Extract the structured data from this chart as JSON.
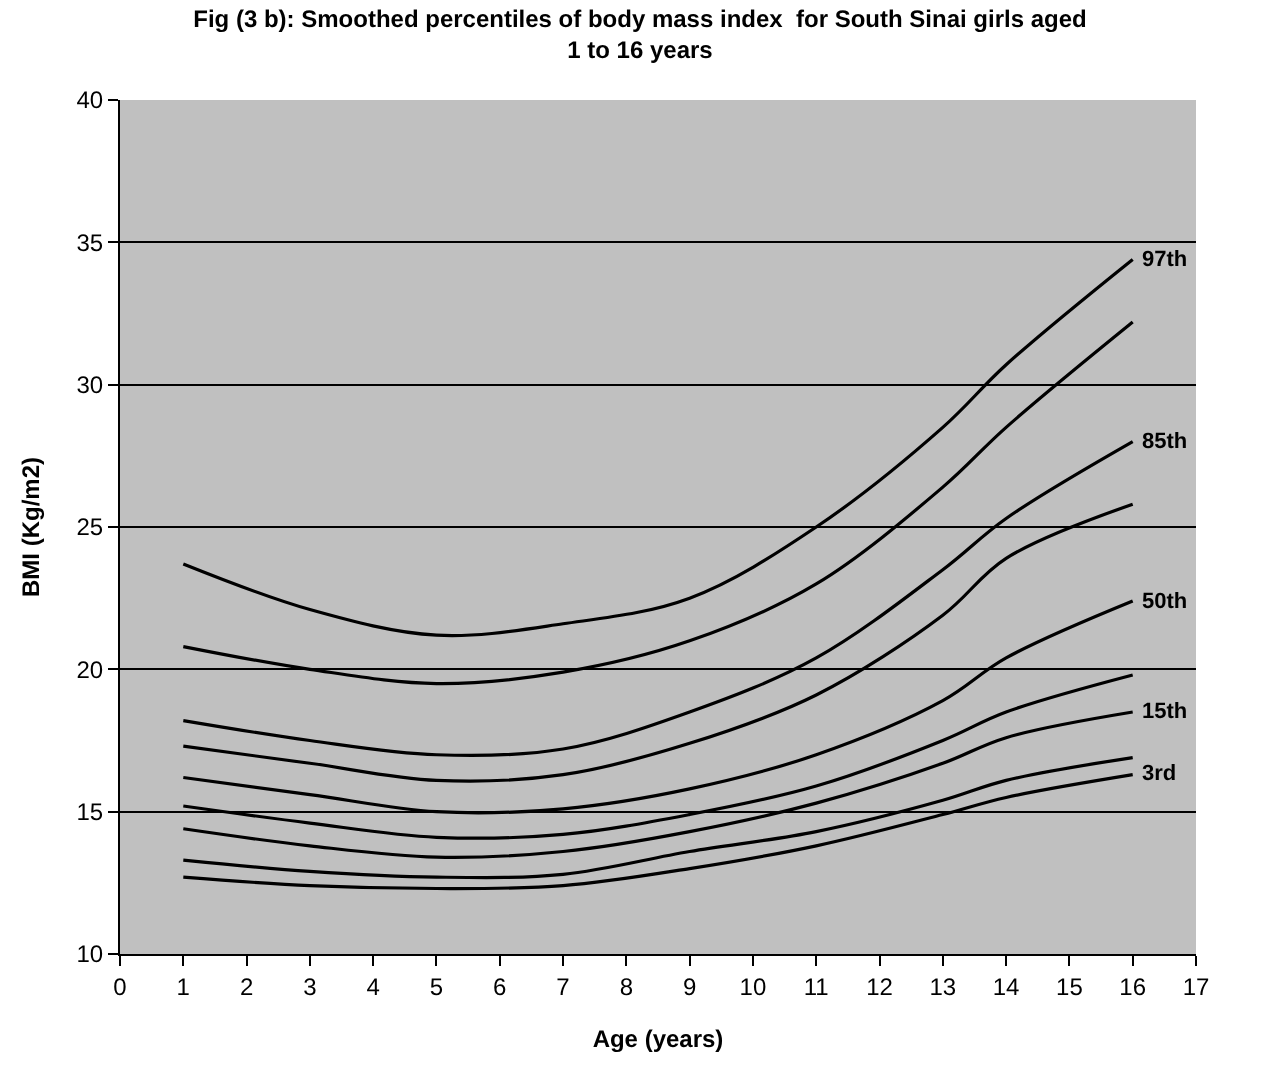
{
  "chart_data": {
    "type": "line",
    "title": "Fig (3 b): Smoothed percentiles of body mass index  for South Sinai girls aged\n1 to 16 years",
    "xlabel": "Age (years)",
    "ylabel": "BMI (Kg/m2)",
    "x": [
      1,
      3,
      5,
      7,
      9,
      11,
      13,
      14,
      16
    ],
    "series": [
      {
        "name": "97th",
        "color": "#000000",
        "values": [
          23.7,
          22.1,
          21.2,
          21.6,
          22.5,
          25.0,
          28.5,
          30.7,
          34.4
        ]
      },
      {
        "color": "#000000",
        "values": [
          20.8,
          20.0,
          19.5,
          19.9,
          21.0,
          23.0,
          26.4,
          28.5,
          32.2
        ]
      },
      {
        "name": "85th",
        "color": "#000000",
        "values": [
          18.2,
          17.5,
          17.0,
          17.2,
          18.5,
          20.4,
          23.5,
          25.3,
          28.0
        ]
      },
      {
        "color": "#000000",
        "values": [
          17.3,
          16.7,
          16.1,
          16.3,
          17.4,
          19.1,
          21.9,
          23.9,
          25.8
        ]
      },
      {
        "name": "50th",
        "color": "#000000",
        "values": [
          16.2,
          15.6,
          15.0,
          15.1,
          15.8,
          17.0,
          18.9,
          20.4,
          22.4
        ]
      },
      {
        "color": "#000000",
        "values": [
          15.2,
          14.6,
          14.1,
          14.2,
          14.9,
          15.9,
          17.5,
          18.5,
          19.8
        ]
      },
      {
        "name": "15th",
        "color": "#000000",
        "values": [
          14.4,
          13.8,
          13.4,
          13.6,
          14.3,
          15.3,
          16.7,
          17.6,
          18.5
        ]
      },
      {
        "color": "#000000",
        "values": [
          13.3,
          12.9,
          12.7,
          12.8,
          13.6,
          14.3,
          15.4,
          16.1,
          16.9
        ]
      },
      {
        "name": "3rd",
        "color": "#000000",
        "values": [
          12.7,
          12.4,
          12.3,
          12.4,
          13.0,
          13.8,
          14.9,
          15.5,
          16.3
        ]
      }
    ],
    "xlim": [
      0,
      17
    ],
    "xticks": [
      0,
      1,
      2,
      3,
      4,
      5,
      6,
      7,
      8,
      9,
      10,
      11,
      12,
      13,
      14,
      15,
      16,
      17
    ],
    "ylim": [
      10,
      40
    ],
    "yticks": [
      10,
      15,
      20,
      25,
      30,
      35,
      40
    ],
    "grid": "y",
    "marker": "none",
    "line_style": "solid"
  }
}
